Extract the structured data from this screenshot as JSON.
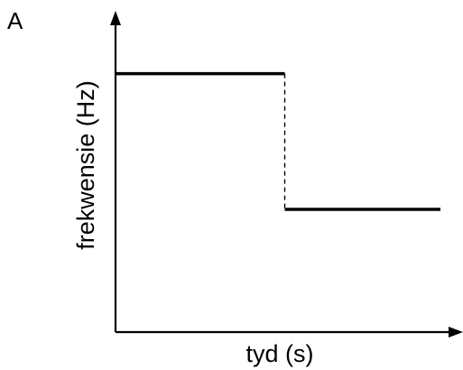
{
  "panel_label": "A",
  "chart_data": {
    "type": "line",
    "title": "",
    "xlabel": "tyd (s)",
    "ylabel": "frekwensie (Hz)",
    "x_ticks": [],
    "y_ticks": [],
    "grid": false,
    "legend": "none",
    "series": [
      {
        "segments": [
          {
            "style": "solid",
            "points": [
              [
                0.0,
                0.8
              ],
              [
                0.5,
                0.8
              ]
            ]
          },
          {
            "style": "dashed",
            "points": [
              [
                0.5,
                0.8
              ],
              [
                0.5,
                0.38
              ]
            ]
          },
          {
            "style": "solid",
            "points": [
              [
                0.5,
                0.38
              ],
              [
                0.96,
                0.38
              ]
            ]
          }
        ]
      }
    ],
    "xlim": [
      0,
      1
    ],
    "ylim": [
      0,
      1
    ],
    "colors": {
      "line": "#000000",
      "axes": "#000000"
    }
  }
}
